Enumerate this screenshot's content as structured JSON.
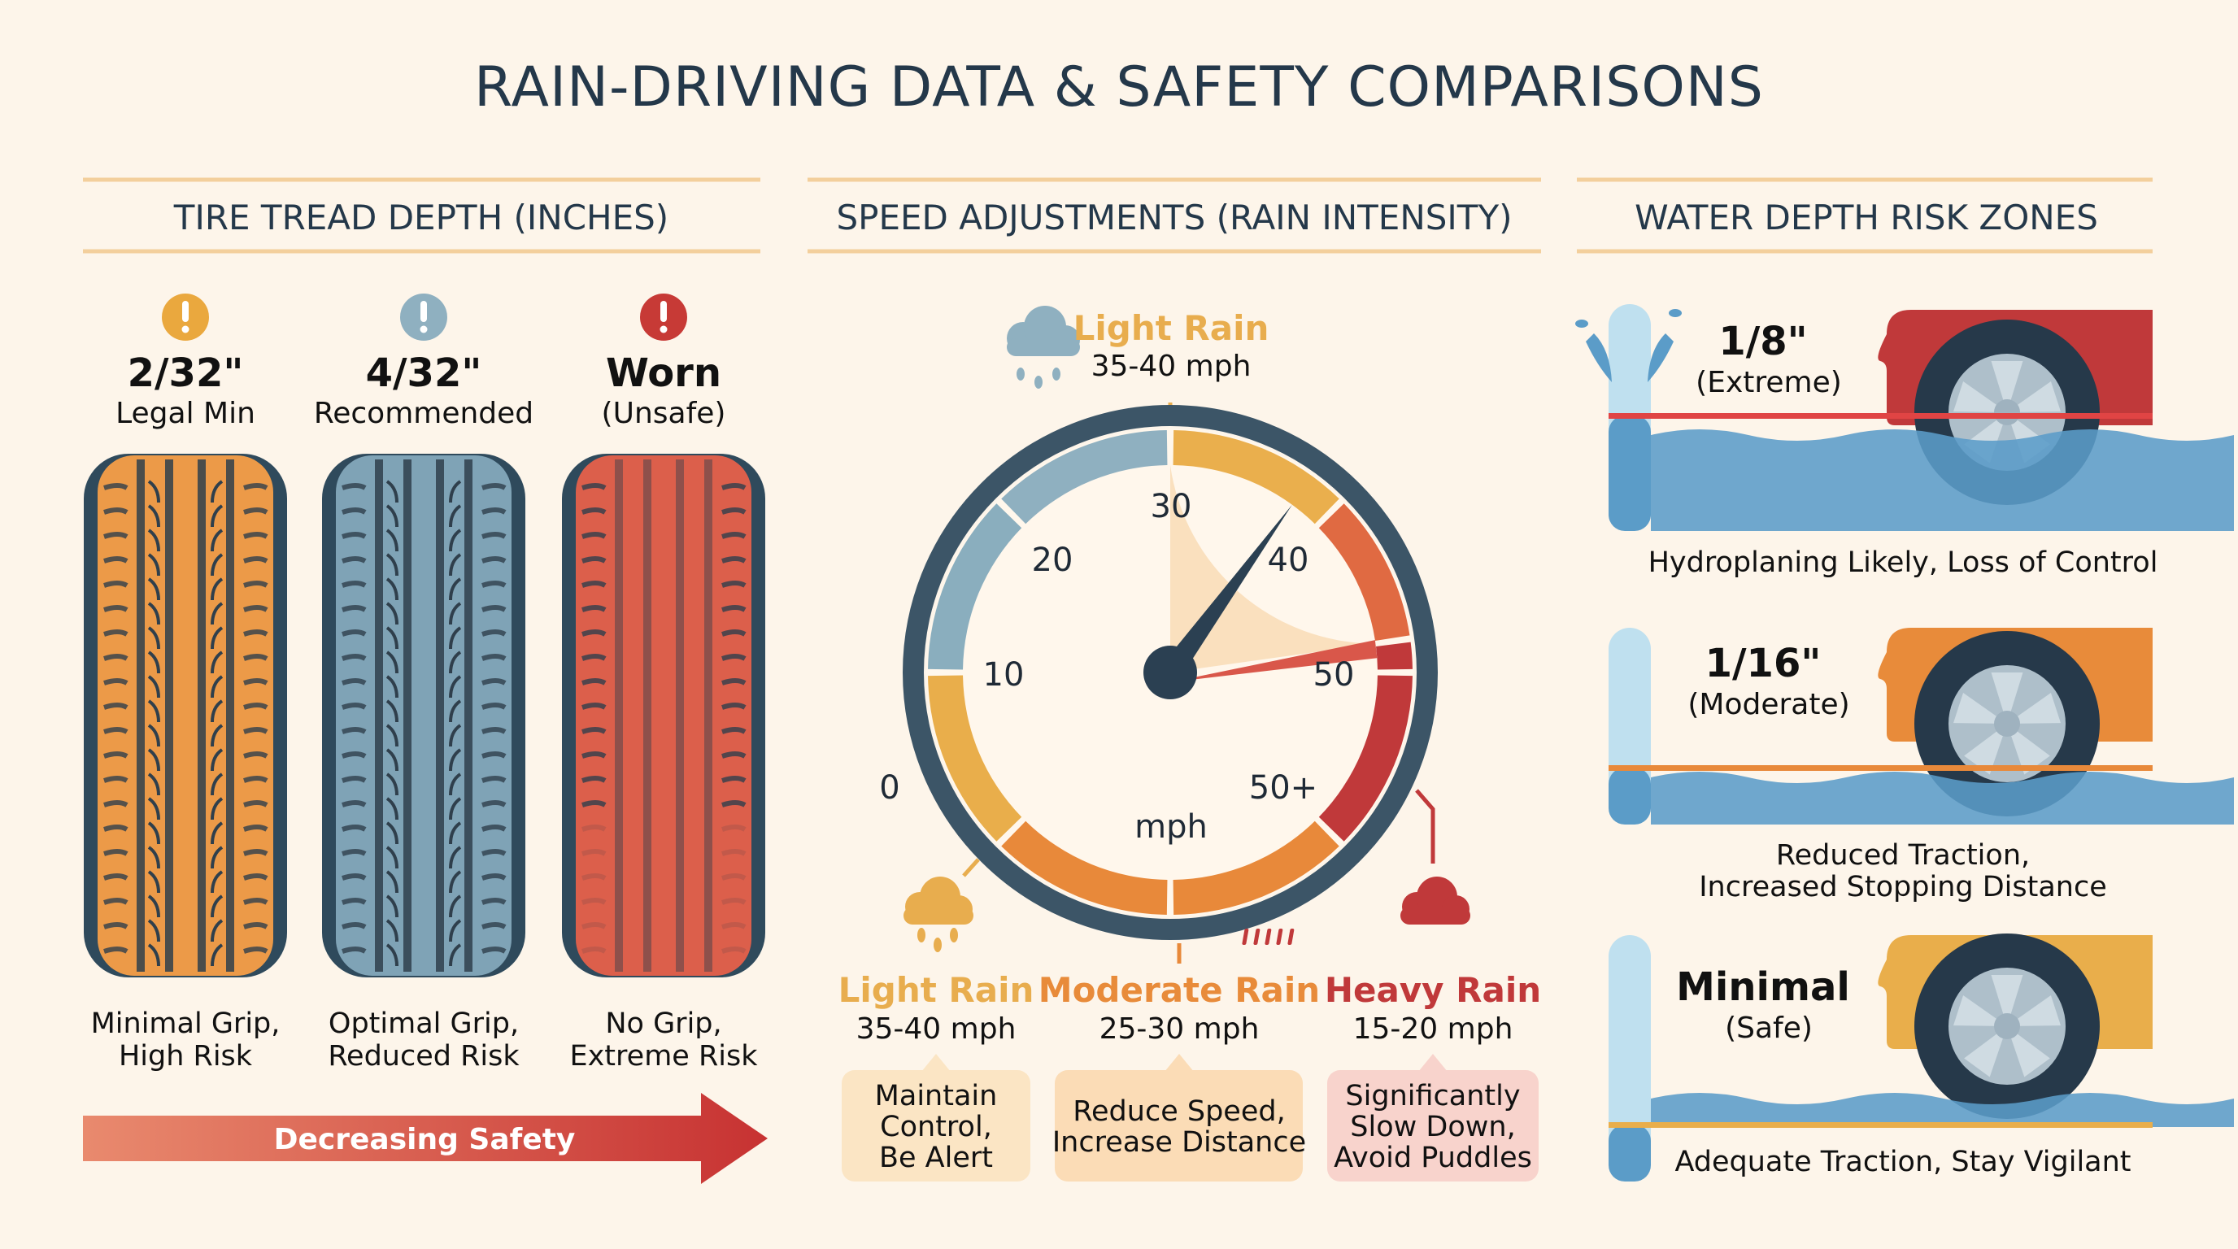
{
  "title": "RAIN-DRIVING DATA & SAFETY COMPARISONS",
  "tread": {
    "header": "TIRE TREAD DEPTH (INCHES)",
    "tires": [
      {
        "value": "2/32\"",
        "label": "Legal Min",
        "caption": [
          "Minimal Grip,",
          "High Risk"
        ],
        "color": "#ec9a48",
        "alert_color": "#eaa83e",
        "alert_icon": "exclamation-icon"
      },
      {
        "value": "4/32\"",
        "label": "Recommended",
        "caption": [
          "Optimal Grip,",
          "Reduced Risk"
        ],
        "color": "#7fa3b6",
        "alert_color": "#8fb0c0",
        "alert_icon": "exclamation-icon"
      },
      {
        "value": "Worn",
        "label": "(Unsafe)",
        "caption": [
          "No Grip,",
          "Extreme Risk"
        ],
        "color": "#dc5f4b",
        "alert_color": "#c73a36",
        "alert_icon": "exclamation-icon"
      }
    ],
    "arrow_label": "Decreasing Safety"
  },
  "speed": {
    "header": "SPEED ADJUSTMENTS (RAIN INTENSITY)",
    "top_callout": {
      "name": "Light Rain",
      "range": "35-40 mph",
      "icon": "rain-cloud-icon"
    },
    "gauge": {
      "ticks": [
        "0",
        "10",
        "20",
        "30",
        "40",
        "50",
        "50+"
      ],
      "unit": "mph",
      "needle_value": 38
    },
    "levels": [
      {
        "name": "Light Rain",
        "range": "35-40 mph",
        "advice": [
          "Maintain",
          "Control,",
          "Be Alert"
        ],
        "color": "#e8ad4e",
        "box_color": "#fbe5c4",
        "icon": "light-rain-cloud-icon"
      },
      {
        "name": "Moderate Rain",
        "range": "25-30 mph",
        "advice": [
          "Reduce Speed,",
          "Increase Distance"
        ],
        "color": "#e88b3a",
        "box_color": "#fbdcb6",
        "icon": "moderate-rain-icon"
      },
      {
        "name": "Heavy Rain",
        "range": "15-20 mph",
        "advice": [
          "Significantly",
          "Slow Down,",
          "Avoid Puddles"
        ],
        "color": "#c0393a",
        "box_color": "#f8d3cc",
        "icon": "heavy-rain-cloud-icon"
      }
    ]
  },
  "water": {
    "header": "WATER DEPTH RISK ZONES",
    "zones": [
      {
        "depth": "1/8\"",
        "severity": "(Extreme)",
        "caption": [
          "Hydroplaning Likely, Loss of Control"
        ],
        "color": "#c0393a",
        "line_color": "#e04444"
      },
      {
        "depth": "1/16\"",
        "severity": "(Moderate)",
        "caption": [
          "Reduced Traction,",
          "Increased Stopping Distance"
        ],
        "color": "#e88b3a",
        "line_color": "#e8893a"
      },
      {
        "depth": "Minimal",
        "severity": "(Safe)",
        "caption": [
          "Adequate Traction, Stay Vigilant"
        ],
        "color": "#e9ae4b",
        "line_color": "#e9ae4b"
      }
    ]
  }
}
